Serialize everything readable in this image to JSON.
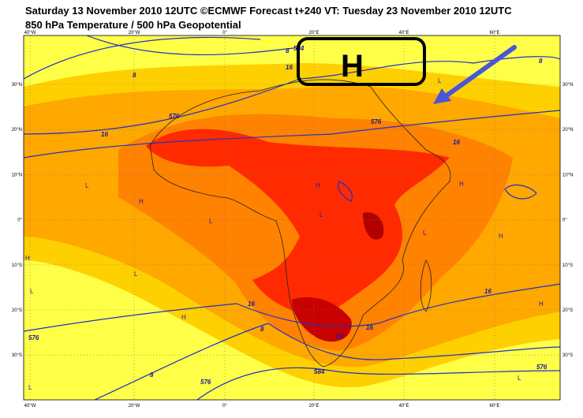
{
  "header": {
    "title": "Saturday 13 November 2010 12UTC ©ECMWF Forecast t+240 VT: Tuesday 23 November 2010 12UTC",
    "subtitle": "850 hPa Temperature / 500 hPa Geopotential"
  },
  "map": {
    "lon_labels": [
      "40°W",
      "20°W",
      "0°",
      "20°E",
      "40°E",
      "60°E"
    ],
    "lat_labels": [
      "30°N",
      "20°N",
      "10°N",
      "0°",
      "10°S",
      "20°S",
      "30°S"
    ],
    "annotation": "H",
    "contour_labels": [
      "584",
      "8",
      "8",
      "16",
      "576",
      "16",
      "576",
      "16",
      "16",
      "8",
      "24",
      "16",
      "16",
      "576",
      "584",
      "576",
      "8",
      "576",
      "8"
    ],
    "pressure_marks": [
      "L",
      "H",
      "L",
      "H",
      "L",
      "H",
      "L",
      "H",
      "L",
      "H",
      "H",
      "L",
      "L",
      "L",
      "H",
      "L"
    ]
  }
}
